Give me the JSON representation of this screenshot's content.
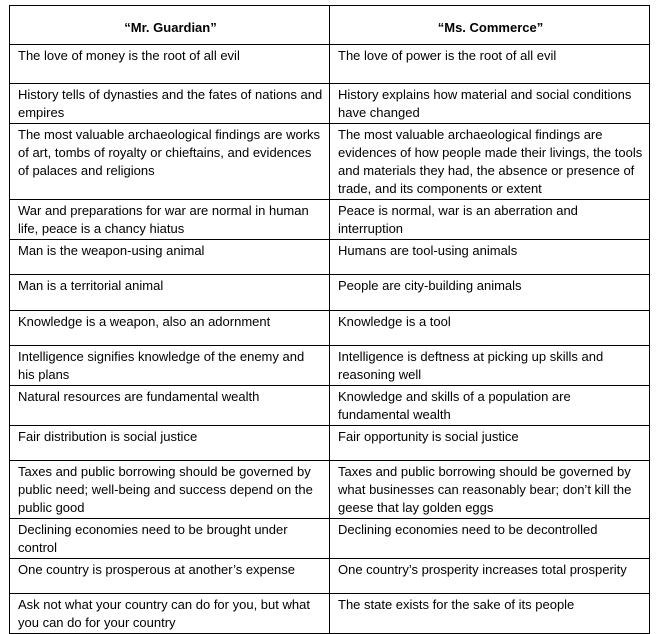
{
  "table": {
    "headers": [
      "“Mr. Guardian”",
      "“Ms. Commerce”"
    ],
    "rows": [
      [
        "The love of money is the root of all evil",
        "The love of power is the root of all evil"
      ],
      [
        "History tells of dynasties and the fates of nations and empires",
        "History explains how material and social conditions have changed"
      ],
      [
        "The most valuable archaeological findings are works of art, tombs of royalty or chieftains, and evidences of palaces and religions",
        "The most valuable archaeological findings are evidences of how people made their livings, the tools and materials they had, the absence or presence of trade, and its components or extent"
      ],
      [
        "War and preparations for war are normal in human life, peace is a chancy hiatus",
        "Peace is normal, war is an aberration and interruption"
      ],
      [
        "Man is the weapon-using animal",
        "Humans are tool-using animals"
      ],
      [
        "Man is a territorial animal",
        "People are city-building animals"
      ],
      [
        "Knowledge is a weapon, also an adornment",
        "Knowledge is a tool"
      ],
      [
        "Intelligence signifies knowledge of the enemy and his plans",
        "Intelligence is deftness at picking up skills  and reasoning well"
      ],
      [
        "Natural resources are fundamental wealth",
        "Knowledge and skills of a  population are fundamental wealth"
      ],
      [
        "Fair distribution is  social justice",
        "Fair opportunity is social justice"
      ],
      [
        "Taxes and public borrowing should be governed by public need; well-being and success depend on the public good",
        "Taxes and public borrowing should be governed by what businesses can reasonably bear; don’t kill the geese that lay golden eggs"
      ],
      [
        "Declining economies need to be brought under control",
        "Declining economies need to be decontrolled"
      ],
      [
        "One country is prosperous at another’s expense",
        "One country’s prosperity increases total prosperity"
      ],
      [
        "Ask not what your country can do for you, but what you can do for your country",
        "The state exists for the sake of its people"
      ]
    ]
  }
}
